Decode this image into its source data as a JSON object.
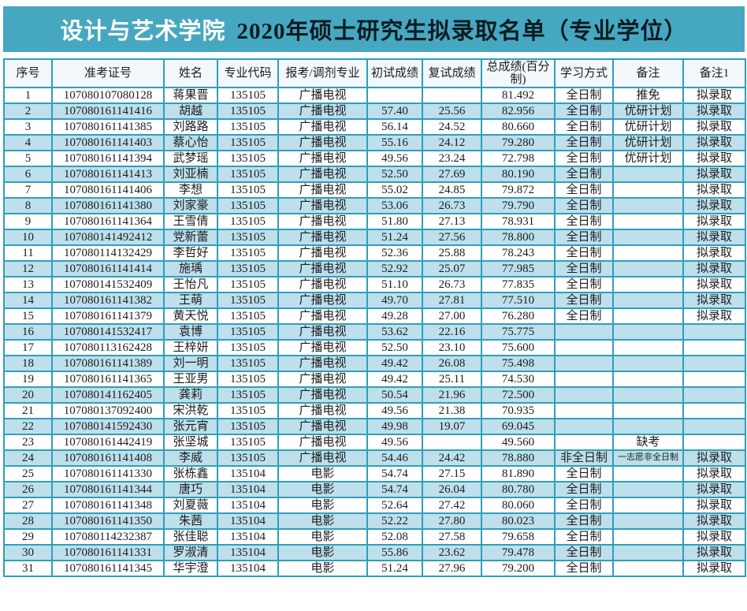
{
  "title": {
    "college": "设计与艺术学院",
    "heading": "2020年硕士研究生拟录取名单（专业学位）"
  },
  "colors": {
    "teal": "#46a8c0",
    "border": "#2f9fba",
    "stripe": "#bedfec",
    "header-bg": "#f2f8fb",
    "title-dark": "#0d1b22"
  },
  "table": {
    "columns": [
      "序号",
      "准考证号",
      "姓名",
      "专业代码",
      "报考/调剂专业",
      "初试成绩",
      "复试成绩",
      "总成绩(百分制)",
      "学习方式",
      "备注",
      "备注1"
    ],
    "rows": [
      [
        "1",
        "107080107080128",
        "蒋果晋",
        "135105",
        "广播电视",
        "",
        "",
        "81.492",
        "全日制",
        "推免",
        "拟录取"
      ],
      [
        "2",
        "107080161141416",
        "胡越",
        "135105",
        "广播电视",
        "57.40",
        "25.56",
        "82.956",
        "全日制",
        "优研计划",
        "拟录取"
      ],
      [
        "3",
        "107080161141385",
        "刘路路",
        "135105",
        "广播电视",
        "56.14",
        "24.52",
        "80.660",
        "全日制",
        "优研计划",
        "拟录取"
      ],
      [
        "4",
        "107080161141403",
        "蔡心怡",
        "135105",
        "广播电视",
        "55.16",
        "24.12",
        "79.280",
        "全日制",
        "优研计划",
        "拟录取"
      ],
      [
        "5",
        "107080161141394",
        "武梦瑶",
        "135105",
        "广播电视",
        "49.56",
        "23.24",
        "72.798",
        "全日制",
        "优研计划",
        "拟录取"
      ],
      [
        "6",
        "107080161141413",
        "刘亚楠",
        "135105",
        "广播电视",
        "52.50",
        "27.69",
        "80.190",
        "全日制",
        "",
        "拟录取"
      ],
      [
        "7",
        "107080161141406",
        "李想",
        "135105",
        "广播电视",
        "55.02",
        "24.85",
        "79.872",
        "全日制",
        "",
        "拟录取"
      ],
      [
        "8",
        "107080161141380",
        "刘家豪",
        "135105",
        "广播电视",
        "53.06",
        "26.73",
        "79.790",
        "全日制",
        "",
        "拟录取"
      ],
      [
        "9",
        "107080161141364",
        "王雪倩",
        "135105",
        "广播电视",
        "51.80",
        "27.13",
        "78.931",
        "全日制",
        "",
        "拟录取"
      ],
      [
        "10",
        "107080141492412",
        "党新蕾",
        "135105",
        "广播电视",
        "51.24",
        "27.56",
        "78.800",
        "全日制",
        "",
        "拟录取"
      ],
      [
        "11",
        "107080114132429",
        "李哲好",
        "135105",
        "广播电视",
        "52.36",
        "25.88",
        "78.243",
        "全日制",
        "",
        "拟录取"
      ],
      [
        "12",
        "107080161141414",
        "施瑀",
        "135105",
        "广播电视",
        "52.92",
        "25.07",
        "77.985",
        "全日制",
        "",
        "拟录取"
      ],
      [
        "13",
        "107080141532409",
        "王怡凡",
        "135105",
        "广播电视",
        "51.10",
        "26.73",
        "77.835",
        "全日制",
        "",
        "拟录取"
      ],
      [
        "14",
        "107080161141382",
        "王萌",
        "135105",
        "广播电视",
        "49.70",
        "27.81",
        "77.510",
        "全日制",
        "",
        "拟录取"
      ],
      [
        "15",
        "107080161141379",
        "黄天悦",
        "135105",
        "广播电视",
        "49.28",
        "27.00",
        "76.280",
        "全日制",
        "",
        "拟录取"
      ],
      [
        "16",
        "107080141532417",
        "袁博",
        "135105",
        "广播电视",
        "53.62",
        "22.16",
        "75.775",
        "",
        "",
        ""
      ],
      [
        "17",
        "107080113162428",
        "王梓妍",
        "135105",
        "广播电视",
        "52.50",
        "23.10",
        "75.600",
        "",
        "",
        ""
      ],
      [
        "18",
        "107080161141389",
        "刘一明",
        "135105",
        "广播电视",
        "49.42",
        "26.08",
        "75.498",
        "",
        "",
        ""
      ],
      [
        "19",
        "107080161141365",
        "王亚男",
        "135105",
        "广播电视",
        "49.42",
        "25.11",
        "74.530",
        "",
        "",
        ""
      ],
      [
        "20",
        "107080141162405",
        "龚莉",
        "135105",
        "广播电视",
        "50.54",
        "21.96",
        "72.500",
        "",
        "",
        ""
      ],
      [
        "21",
        "107080137092400",
        "宋洪乾",
        "135105",
        "广播电视",
        "49.56",
        "21.38",
        "70.935",
        "",
        "",
        ""
      ],
      [
        "22",
        "107080141592430",
        "张元宵",
        "135105",
        "广播电视",
        "49.98",
        "19.07",
        "69.045",
        "",
        "",
        ""
      ],
      [
        "23",
        "107080161442419",
        "张坚城",
        "135105",
        "广播电视",
        "49.56",
        "",
        "49.560",
        "",
        "缺考",
        ""
      ],
      [
        "24",
        "107080161141408",
        "李威",
        "135105",
        "广播电视",
        "54.46",
        "24.42",
        "78.880",
        "非全日制",
        "一志愿非全日制",
        "拟录取"
      ],
      [
        "25",
        "107080161141330",
        "张栋鑫",
        "135104",
        "电影",
        "54.74",
        "27.15",
        "81.890",
        "全日制",
        "",
        "拟录取"
      ],
      [
        "26",
        "107080161141344",
        "唐巧",
        "135104",
        "电影",
        "54.74",
        "26.04",
        "80.780",
        "全日制",
        "",
        "拟录取"
      ],
      [
        "27",
        "107080161141348",
        "刘夏薇",
        "135104",
        "电影",
        "52.64",
        "27.42",
        "80.060",
        "全日制",
        "",
        "拟录取"
      ],
      [
        "28",
        "107080161141350",
        "朱茜",
        "135104",
        "电影",
        "52.22",
        "27.80",
        "80.023",
        "全日制",
        "",
        "拟录取"
      ],
      [
        "29",
        "107080114232387",
        "张佳聪",
        "135104",
        "电影",
        "52.08",
        "27.58",
        "79.658",
        "全日制",
        "",
        "拟录取"
      ],
      [
        "30",
        "107080161141331",
        "罗淑清",
        "135104",
        "电影",
        "55.86",
        "23.62",
        "79.478",
        "全日制",
        "",
        "拟录取"
      ],
      [
        "31",
        "107080161141345",
        "华宇澄",
        "135104",
        "电影",
        "51.24",
        "27.96",
        "79.200",
        "全日制",
        "",
        "拟录取"
      ]
    ]
  }
}
